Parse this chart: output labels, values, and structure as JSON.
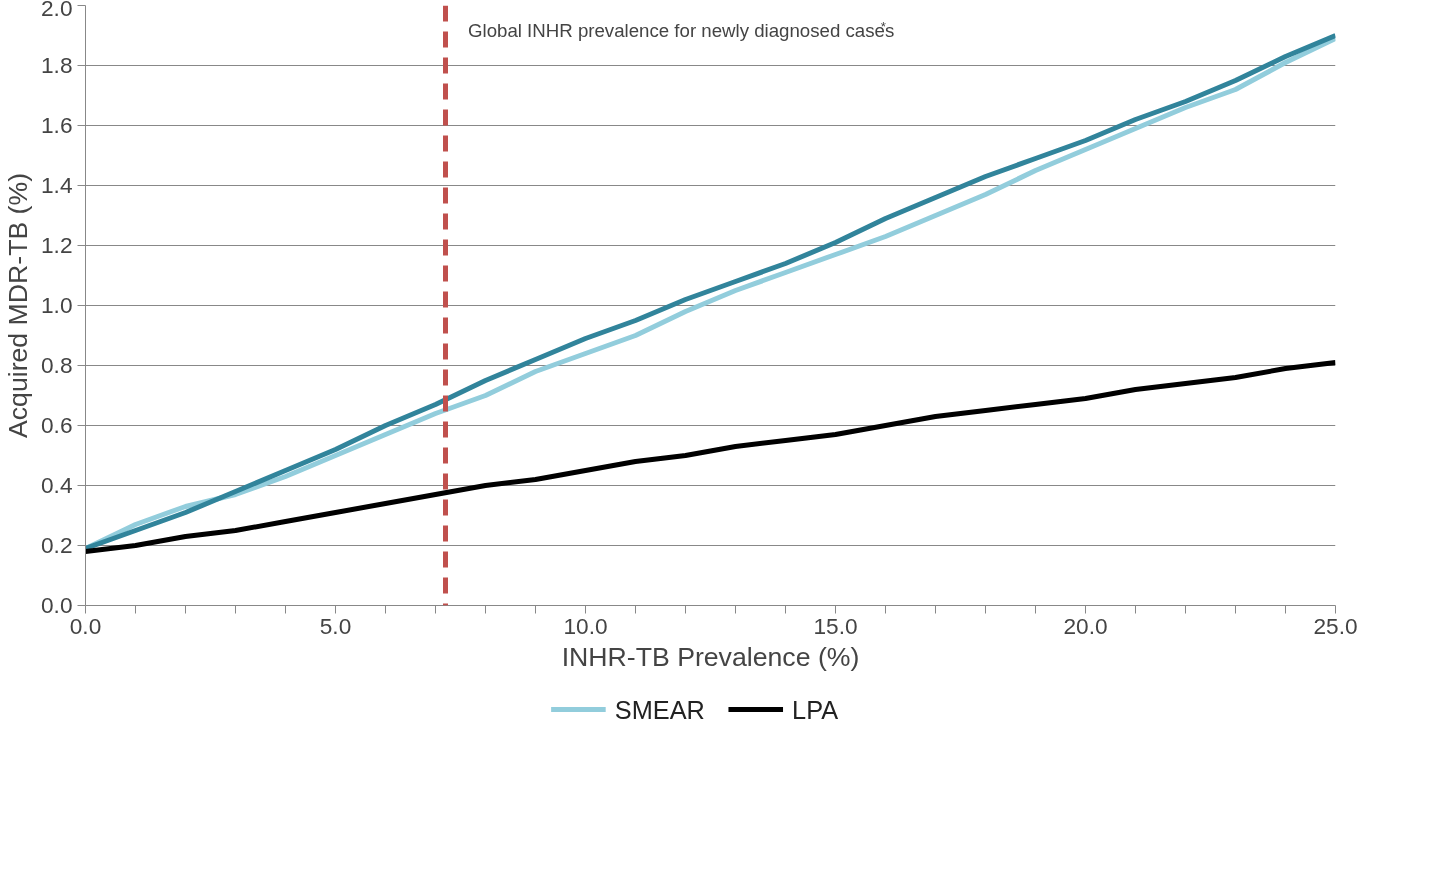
{
  "chart_data": {
    "type": "line",
    "xlabel": "INHR-TB Prevalence (%)",
    "ylabel": "Acquired MDR-TB (%)",
    "x": [
      0,
      1,
      2,
      3,
      4,
      5,
      6,
      7,
      8,
      9,
      10,
      11,
      12,
      13,
      14,
      15,
      16,
      17,
      18,
      19,
      20,
      21,
      22,
      23,
      24,
      25
    ],
    "series": [
      {
        "name": "SMEAR",
        "color": "#92cddc",
        "values": [
          0.19,
          0.27,
          0.33,
          0.37,
          0.43,
          0.5,
          0.57,
          0.64,
          0.7,
          0.78,
          0.84,
          0.9,
          0.98,
          1.05,
          1.11,
          1.17,
          1.23,
          1.3,
          1.37,
          1.45,
          1.52,
          1.59,
          1.66,
          1.72,
          1.81,
          1.89
        ]
      },
      {
        "color": "#31849b",
        "values": [
          0.19,
          0.25,
          0.31,
          0.38,
          0.45,
          0.52,
          0.6,
          0.67,
          0.75,
          0.82,
          0.89,
          0.95,
          1.02,
          1.08,
          1.14,
          1.21,
          1.29,
          1.36,
          1.43,
          1.49,
          1.55,
          1.62,
          1.68,
          1.75,
          1.83,
          1.9
        ]
      },
      {
        "name": "LPA",
        "color": "#000000",
        "values": [
          0.18,
          0.2,
          0.23,
          0.25,
          0.28,
          0.31,
          0.34,
          0.37,
          0.4,
          0.42,
          0.45,
          0.48,
          0.5,
          0.53,
          0.55,
          0.57,
          0.6,
          0.63,
          0.65,
          0.67,
          0.69,
          0.72,
          0.74,
          0.76,
          0.79,
          0.81
        ]
      }
    ],
    "xlim": [
      0,
      25
    ],
    "ylim": [
      0,
      2.0
    ],
    "xticks": [
      {
        "value": 0,
        "label": "0.0"
      },
      {
        "value": 1,
        "label": null
      },
      {
        "value": 2,
        "label": null
      },
      {
        "value": 3,
        "label": null
      },
      {
        "value": 4,
        "label": null
      },
      {
        "value": 5,
        "label": "5.0"
      },
      {
        "value": 6,
        "label": null
      },
      {
        "value": 7,
        "label": null
      },
      {
        "value": 8,
        "label": null
      },
      {
        "value": 9,
        "label": null
      },
      {
        "value": 10,
        "label": "10.0"
      },
      {
        "value": 11,
        "label": null
      },
      {
        "value": 12,
        "label": null
      },
      {
        "value": 13,
        "label": null
      },
      {
        "value": 14,
        "label": null
      },
      {
        "value": 15,
        "label": "15.0"
      },
      {
        "value": 16,
        "label": null
      },
      {
        "value": 17,
        "label": null
      },
      {
        "value": 18,
        "label": null
      },
      {
        "value": 19,
        "label": null
      },
      {
        "value": 20,
        "label": "20.0"
      },
      {
        "value": 21,
        "label": null
      },
      {
        "value": 22,
        "label": null
      },
      {
        "value": 23,
        "label": null
      },
      {
        "value": 24,
        "label": null
      },
      {
        "value": 25,
        "label": "25.0"
      }
    ],
    "yticks": [
      {
        "value": 0,
        "label": "0.0"
      },
      {
        "value": 0.2,
        "label": "0.2"
      },
      {
        "value": 0.4,
        "label": "0.4"
      },
      {
        "value": 0.6,
        "label": "0.6"
      },
      {
        "value": 0.8,
        "label": "0.8"
      },
      {
        "value": 1.0,
        "label": "1.0"
      },
      {
        "value": 1.2,
        "label": "1.2"
      },
      {
        "value": 1.4,
        "label": "1.4"
      },
      {
        "value": 1.6,
        "label": "1.6"
      },
      {
        "value": 1.8,
        "label": "1.8"
      },
      {
        "value": 2.0,
        "label": "2.0"
      }
    ],
    "ref_lines": [
      {
        "axis": "x",
        "value": 7.2,
        "label": "Global INHR prevalence for newly diagnosed cases$^{*}$",
        "color": "#c0504d",
        "line_style": "dashed"
      }
    ],
    "grid": "y",
    "legend": "bottom",
    "marker": "none",
    "line_style": "solid"
  }
}
